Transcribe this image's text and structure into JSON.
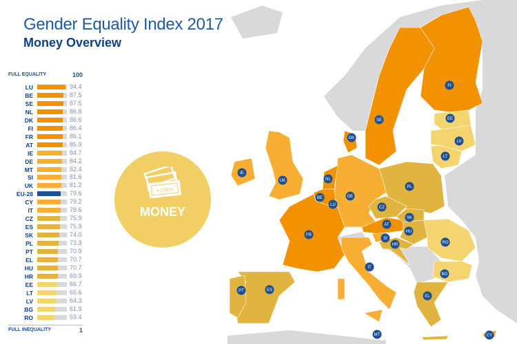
{
  "header": {
    "title": "Gender Equality Index 2017",
    "subtitle": "Money Overview"
  },
  "legend": {
    "full_equality_label": "FULL EQUALITY",
    "full_equality_value": "100",
    "full_inequality_label": "FULL INEQUALITY",
    "full_inequality_value": "1"
  },
  "domain_badge": {
    "label": "MONEY",
    "icon": "banknotes-icon"
  },
  "colors": {
    "tier1": "#f39200",
    "tier2": "#f8ae32",
    "tier3": "#e0b43e",
    "tier4": "#f3d46e",
    "eu": "#1d4f91",
    "track": "#d9d9d9",
    "label_dot": "#1d4f91"
  },
  "chart_data": {
    "type": "bar",
    "title": "Money Overview",
    "xlim": [
      1,
      100
    ],
    "categories": [
      "LU",
      "BE",
      "SE",
      "NL",
      "DK",
      "FI",
      "FR",
      "AT",
      "IE",
      "DE",
      "MT",
      "SI",
      "UK",
      "EU-28",
      "CY",
      "IT",
      "CZ",
      "ES",
      "SK",
      "PL",
      "PT",
      "EL",
      "HU",
      "HR",
      "EE",
      "LT",
      "LV",
      "BG",
      "RO"
    ],
    "values": [
      "94.4",
      "87.5",
      "87.5",
      "86.8",
      "86.6",
      "86.4",
      "86.1",
      "85.9",
      "84.7",
      "84.2",
      "82.4",
      "81.6",
      "81.2",
      "79.6",
      "79.2",
      "78.6",
      "75.9",
      "75.9",
      "74.0",
      "73.3",
      "70.9",
      "70.7",
      "70.7",
      "69.9",
      "66.7",
      "65.6",
      "64.3",
      "61.9",
      "59.4"
    ],
    "tiers": [
      "tier1",
      "tier1",
      "tier1",
      "tier1",
      "tier1",
      "tier1",
      "tier1",
      "tier1",
      "tier2",
      "tier2",
      "tier2",
      "tier2",
      "tier2",
      "eu",
      "tier2",
      "tier2",
      "tier3",
      "tier3",
      "tier3",
      "tier3",
      "tier3",
      "tier3",
      "tier3",
      "tier3",
      "tier4",
      "tier4",
      "tier4",
      "tier4",
      "tier4"
    ]
  },
  "map_labels": [
    "FI",
    "SE",
    "EE",
    "LV",
    "LT",
    "DK",
    "IE",
    "UK",
    "NL",
    "BE",
    "LU",
    "DE",
    "PL",
    "CZ",
    "SK",
    "AT",
    "HU",
    "SI",
    "HR",
    "FR",
    "RO",
    "BG",
    "IT",
    "PT",
    "ES",
    "EL",
    "MT",
    "CY"
  ]
}
